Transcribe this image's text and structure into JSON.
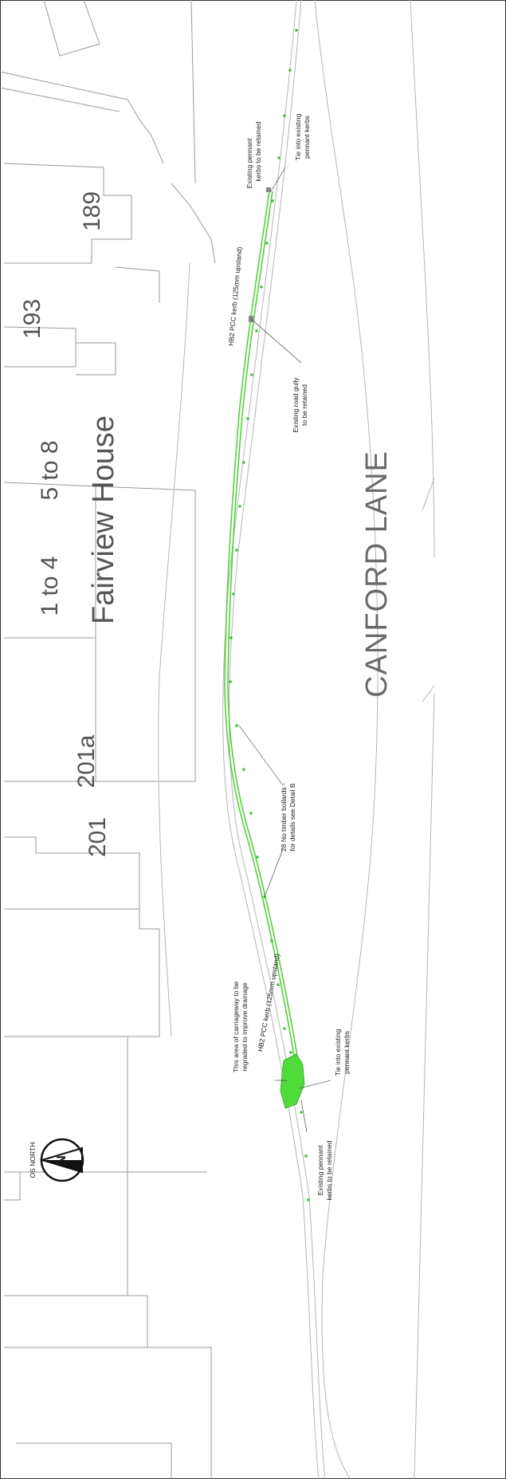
{
  "road_label": "CANFORD LANE",
  "building_labels": {
    "b189": "189",
    "b193": "193",
    "fairview": "Fairview House",
    "b5to8": "5 to 8",
    "b1to4": "1 to 4",
    "b201a": "201a",
    "b201": "201"
  },
  "annotations": {
    "existing_kerbs_top_l1": "Existing pennant",
    "existing_kerbs_top_l2": "kerbs to be retained",
    "tie_top_l1": "Tie into existing",
    "tie_top_l2": "pennant kerbs",
    "hb2_top": "HB2 PCC kerb (125mm upstand)",
    "gully_l1": "Existing road gully",
    "gully_l2": "to be retained",
    "bollards_l1": "28 No timber bollards -",
    "bollards_l2": "for details see Detail B",
    "regrade_l1": "This area of carriageway to be",
    "regrade_l2": "regraded to improve drainage",
    "hb2_bottom": "HB2 PCC kerb (125mm upstand)",
    "tie_bottom_l1": "Tie into existing",
    "tie_bottom_l2": "pennant kerbs",
    "existing_kerbs_bottom_l1": "Existing pennant",
    "existing_kerbs_bottom_l2": "kerbs to be retained"
  },
  "north_label": "OS NORTH",
  "north_letter": "N",
  "colors": {
    "kerb": "#55d13c",
    "bollard": "#3cc43c",
    "regrade_area": "#4fdc3a",
    "building_line": "#9a9a9a",
    "text": "#555555"
  }
}
